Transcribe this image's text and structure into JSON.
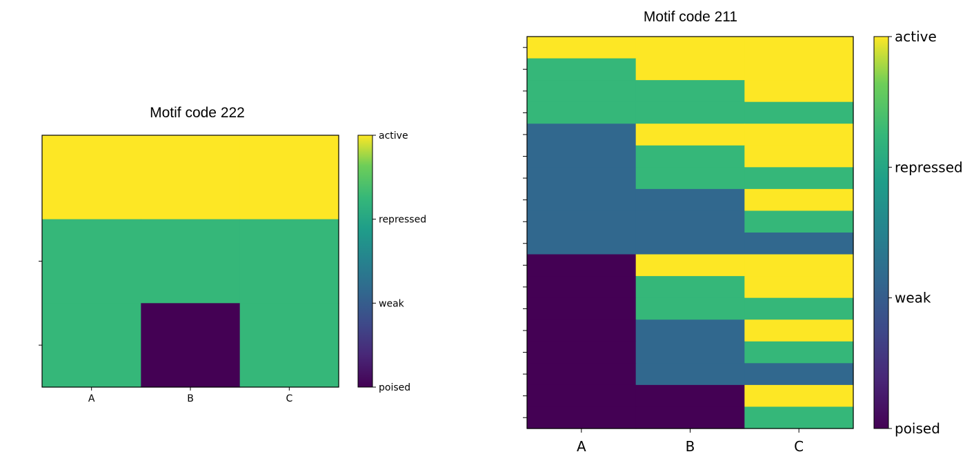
{
  "colors": {
    "poised": "#440154",
    "weak": "#31688e",
    "repressed": "#35b779",
    "active": "#fde725"
  },
  "chart_data": [
    {
      "type": "heatmap",
      "title": "Motif code 222",
      "columns": [
        "A",
        "B",
        "C"
      ],
      "colorbar_labels": [
        "poised",
        "weak",
        "repressed",
        "active"
      ],
      "rows": [
        [
          "active",
          "active",
          "active"
        ],
        [
          "repressed",
          "repressed",
          "repressed"
        ],
        [
          "repressed",
          "poised",
          "repressed"
        ]
      ]
    },
    {
      "type": "heatmap",
      "title": "Motif code 211",
      "columns": [
        "A",
        "B",
        "C"
      ],
      "colorbar_labels": [
        "poised",
        "weak",
        "repressed",
        "active"
      ],
      "rows": [
        [
          "active",
          "active",
          "active"
        ],
        [
          "repressed",
          "active",
          "active"
        ],
        [
          "repressed",
          "repressed",
          "active"
        ],
        [
          "repressed",
          "repressed",
          "repressed"
        ],
        [
          "weak",
          "active",
          "active"
        ],
        [
          "weak",
          "repressed",
          "active"
        ],
        [
          "weak",
          "repressed",
          "repressed"
        ],
        [
          "weak",
          "weak",
          "active"
        ],
        [
          "weak",
          "weak",
          "repressed"
        ],
        [
          "weak",
          "weak",
          "weak"
        ],
        [
          "poised",
          "active",
          "active"
        ],
        [
          "poised",
          "repressed",
          "active"
        ],
        [
          "poised",
          "repressed",
          "repressed"
        ],
        [
          "poised",
          "weak",
          "active"
        ],
        [
          "poised",
          "weak",
          "repressed"
        ],
        [
          "poised",
          "weak",
          "weak"
        ],
        [
          "poised",
          "poised",
          "active"
        ],
        [
          "poised",
          "poised",
          "repressed"
        ]
      ]
    }
  ]
}
